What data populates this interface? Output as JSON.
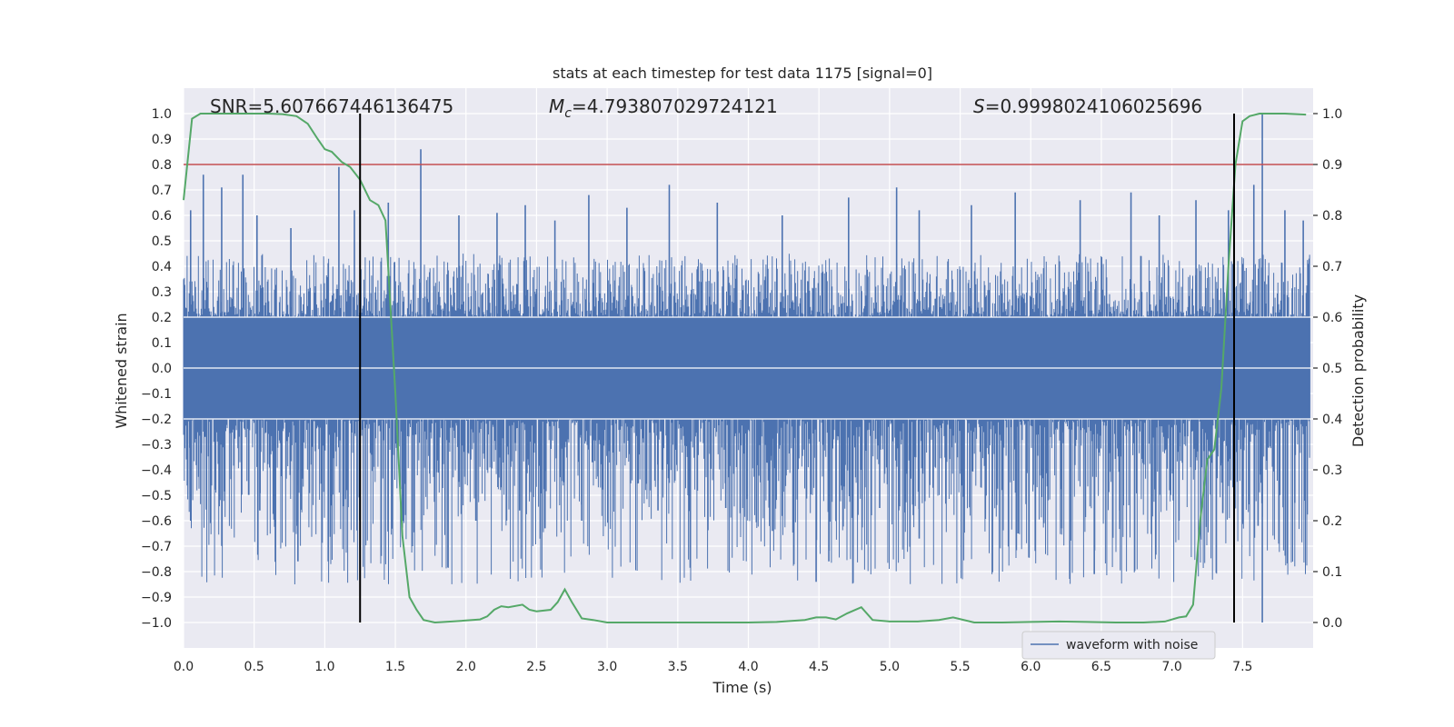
{
  "chart_data": {
    "type": "line",
    "title": "stats at each timestep for test data 1175 [signal=0]",
    "xlabel": "Time (s)",
    "ylabel": "Whitened strain",
    "y2label": "Detection probability",
    "xlim": [
      0.0,
      8.0
    ],
    "ylim": [
      -1.1,
      1.1
    ],
    "y2lim": [
      -0.05,
      1.05
    ],
    "x_ticks": [
      "0.0",
      "0.5",
      "1.0",
      "1.5",
      "2.0",
      "2.5",
      "3.0",
      "3.5",
      "4.0",
      "4.5",
      "5.0",
      "5.5",
      "6.0",
      "6.5",
      "7.0",
      "7.5"
    ],
    "y_ticks": [
      "1.0",
      "0.9",
      "0.8",
      "0.7",
      "0.6",
      "0.5",
      "0.4",
      "0.3",
      "0.2",
      "0.1",
      "0.0",
      "-0.1",
      "-0.2",
      "-0.3",
      "-0.4",
      "-0.5",
      "-0.6",
      "-0.7",
      "-0.8",
      "-0.9",
      "-1.0"
    ],
    "y2_ticks": [
      "1.0",
      "0.9",
      "0.8",
      "0.7",
      "0.6",
      "0.5",
      "0.4",
      "0.3",
      "0.2",
      "0.1",
      "0.0"
    ],
    "grid": true,
    "legend": {
      "position": "lower-right",
      "entries": [
        "waveform with noise"
      ]
    },
    "annotations": {
      "snr": "SNR=5.607667446136475",
      "mc_prefix": "M",
      "mc_sub": "c",
      "mc_value": "=4.793807029724121",
      "s_prefix": "S",
      "s_value": "=0.9998024106025696"
    },
    "threshold": 0.9,
    "vlines": [
      1.25,
      7.44
    ],
    "waveform": {
      "name": "waveform with noise",
      "color": "#4c72b0",
      "core_amplitude": 0.2,
      "typical_max": 0.45,
      "typical_min": -0.45,
      "spikes_up": [
        [
          0.05,
          0.62
        ],
        [
          0.14,
          0.76
        ],
        [
          0.27,
          0.71
        ],
        [
          0.42,
          0.76
        ],
        [
          0.52,
          0.6
        ],
        [
          0.76,
          0.55
        ],
        [
          1.1,
          0.79
        ],
        [
          1.21,
          0.62
        ],
        [
          1.45,
          0.65
        ],
        [
          1.68,
          0.86
        ],
        [
          1.95,
          0.6
        ],
        [
          2.22,
          0.61
        ],
        [
          2.42,
          0.64
        ],
        [
          2.63,
          0.58
        ],
        [
          2.87,
          0.68
        ],
        [
          3.14,
          0.63
        ],
        [
          3.44,
          0.72
        ],
        [
          3.78,
          0.65
        ],
        [
          4.24,
          0.6
        ],
        [
          4.71,
          0.67
        ],
        [
          5.05,
          0.71
        ],
        [
          5.21,
          0.62
        ],
        [
          5.58,
          0.64
        ],
        [
          5.89,
          0.69
        ],
        [
          6.35,
          0.66
        ],
        [
          6.71,
          0.69
        ],
        [
          6.91,
          0.6
        ],
        [
          7.17,
          0.66
        ],
        [
          7.4,
          0.62
        ],
        [
          7.58,
          0.72
        ],
        [
          7.64,
          1.0
        ],
        [
          7.8,
          0.62
        ],
        [
          7.93,
          0.58
        ]
      ],
      "spikes_down": [
        [
          0.05,
          -0.6
        ],
        [
          0.54,
          -0.56
        ],
        [
          0.8,
          -0.62
        ],
        [
          0.81,
          -0.76
        ],
        [
          1.05,
          -0.54
        ],
        [
          1.55,
          -0.6
        ],
        [
          1.62,
          -0.7
        ],
        [
          2.07,
          -0.6
        ],
        [
          2.38,
          -0.56
        ],
        [
          2.56,
          -0.63
        ],
        [
          2.82,
          -0.6
        ],
        [
          3.36,
          -0.56
        ],
        [
          3.84,
          -0.55
        ],
        [
          4.17,
          -0.64
        ],
        [
          4.48,
          -0.84
        ],
        [
          4.57,
          -0.76
        ],
        [
          4.93,
          -0.55
        ],
        [
          5.21,
          -0.67
        ],
        [
          5.91,
          -0.65
        ],
        [
          6.22,
          -0.63
        ],
        [
          6.45,
          -0.81
        ],
        [
          6.63,
          -0.56
        ],
        [
          7.05,
          -0.6
        ],
        [
          7.36,
          -0.57
        ],
        [
          7.61,
          -0.62
        ],
        [
          7.64,
          -1.0
        ],
        [
          7.87,
          -0.53
        ]
      ]
    },
    "probability": {
      "color": "#55a868",
      "x": [
        0.0,
        0.06,
        0.12,
        0.2,
        0.3,
        0.4,
        0.5,
        0.6,
        0.7,
        0.8,
        0.88,
        0.95,
        1.0,
        1.05,
        1.12,
        1.18,
        1.25,
        1.32,
        1.38,
        1.43,
        1.5,
        1.55,
        1.6,
        1.65,
        1.7,
        1.78,
        1.9,
        2.0,
        2.1,
        2.15,
        2.2,
        2.25,
        2.3,
        2.4,
        2.45,
        2.5,
        2.6,
        2.65,
        2.7,
        2.75,
        2.82,
        2.9,
        3.0,
        3.1,
        3.2,
        3.4,
        3.6,
        3.8,
        4.0,
        4.2,
        4.4,
        4.48,
        4.55,
        4.62,
        4.7,
        4.8,
        4.88,
        5.0,
        5.2,
        5.35,
        5.45,
        5.6,
        5.8,
        6.0,
        6.2,
        6.4,
        6.6,
        6.8,
        6.95,
        7.05,
        7.1,
        7.15,
        7.2,
        7.25,
        7.3,
        7.35,
        7.4,
        7.45,
        7.5,
        7.55,
        7.62,
        7.7,
        7.8,
        7.95
      ],
      "y": [
        0.83,
        0.99,
        1.0,
        1.0,
        1.0,
        1.0,
        1.0,
        1.0,
        0.999,
        0.995,
        0.98,
        0.95,
        0.93,
        0.925,
        0.905,
        0.895,
        0.87,
        0.83,
        0.82,
        0.79,
        0.45,
        0.17,
        0.05,
        0.025,
        0.005,
        0.0,
        0.002,
        0.004,
        0.006,
        0.012,
        0.025,
        0.032,
        0.03,
        0.035,
        0.025,
        0.022,
        0.025,
        0.04,
        0.065,
        0.04,
        0.008,
        0.005,
        0.0,
        0.0,
        0.0,
        0.0,
        0.0,
        0.0,
        0.0,
        0.001,
        0.005,
        0.01,
        0.01,
        0.006,
        0.018,
        0.03,
        0.005,
        0.002,
        0.002,
        0.005,
        0.01,
        0.0,
        0.0,
        0.001,
        0.002,
        0.001,
        0.0,
        0.0,
        0.002,
        0.01,
        0.012,
        0.035,
        0.2,
        0.32,
        0.34,
        0.46,
        0.7,
        0.9,
        0.985,
        0.995,
        1.0,
        1.0,
        1.0,
        0.998
      ]
    },
    "colors": {
      "background": "#eaeaf2",
      "grid": "#ffffff",
      "threshold": "#c44e52",
      "vline": "#000000"
    }
  }
}
